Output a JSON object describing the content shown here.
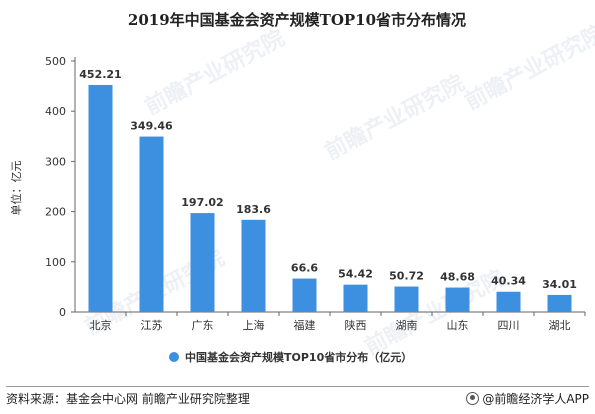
{
  "chart_data": {
    "type": "bar",
    "title": "2019年中国基金会资产规模TOP10省市分布情况",
    "ylabel": "单位：亿元",
    "xlabel": "",
    "categories": [
      "北京",
      "江苏",
      "广东",
      "上海",
      "福建",
      "陕西",
      "湖南",
      "山东",
      "四川",
      "湖北"
    ],
    "series": [
      {
        "name": "中国基金会资产规模TOP10省市分布（亿元）",
        "values": [
          452.21,
          349.46,
          197.02,
          183.6,
          66.6,
          54.42,
          50.72,
          48.68,
          40.34,
          34.01
        ],
        "labels": [
          "452.21",
          "349.46",
          "197.02",
          "183.6",
          "66.6",
          "54.42",
          "50.72",
          "48.68",
          "40.34",
          "34.01"
        ],
        "color": "#3d8fe0"
      }
    ],
    "ylim": [
      0,
      500
    ],
    "yticks": [
      0,
      100,
      200,
      300,
      400,
      500
    ],
    "grid": false,
    "legend_position": "bottom"
  },
  "footer": {
    "source": "资料来源：基金会中心网 前瞻产业研究院整理",
    "brand": "@前瞻经济学人APP",
    "brand_icon": "qianzhan-logo-icon"
  },
  "watermark": {
    "text": "前瞻产业研究院"
  }
}
